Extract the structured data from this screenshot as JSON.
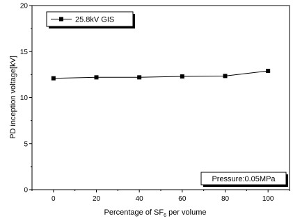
{
  "chart_data": {
    "type": "line",
    "xlabel": "Percentage of SF6 per volume",
    "xlabel_main": "Percentage of SF",
    "xlabel_sub": "6",
    "xlabel_tail": " per volume",
    "ylabel": "PD inception voltage[kV]",
    "xlim": [
      -10,
      110
    ],
    "ylim": [
      0,
      20
    ],
    "xticks": [
      0,
      20,
      40,
      60,
      80,
      100
    ],
    "yticks": [
      0,
      5,
      10,
      15,
      20
    ],
    "grid": false,
    "legend_position": "top-left",
    "series": [
      {
        "name": "25.8kV GIS",
        "marker": "square",
        "color": "#000000",
        "x": [
          0,
          20,
          40,
          60,
          80,
          100
        ],
        "y": [
          12.1,
          12.2,
          12.2,
          12.3,
          12.35,
          12.9
        ]
      }
    ],
    "annotation": "Pressure:0.05MPa"
  }
}
